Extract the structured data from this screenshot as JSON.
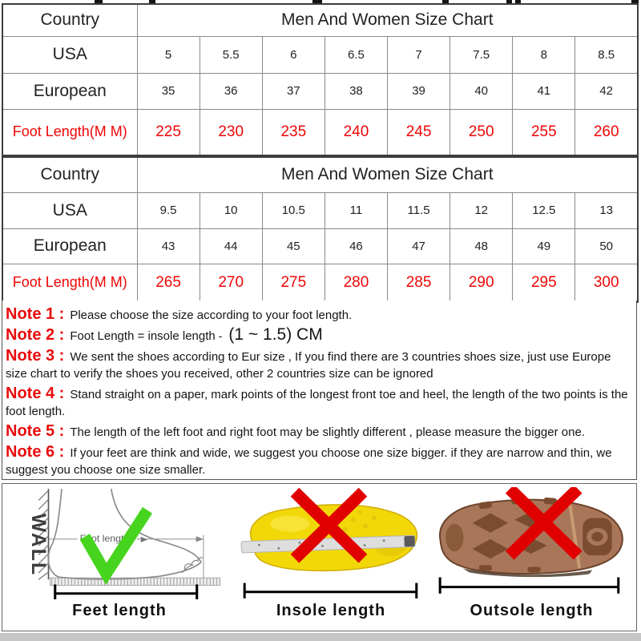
{
  "size_chart_tables": [
    {
      "header": {
        "country": "Country",
        "title": "Men And Women Size Chart"
      },
      "rows": [
        {
          "label": "USA",
          "highlight": false,
          "values": [
            "5",
            "5.5",
            "6",
            "6.5",
            "7",
            "7.5",
            "8",
            "8.5"
          ]
        },
        {
          "label": "European",
          "highlight": false,
          "values": [
            "35",
            "36",
            "37",
            "38",
            "39",
            "40",
            "41",
            "42"
          ]
        },
        {
          "label": "Foot Length(M M)",
          "highlight": true,
          "values": [
            "225",
            "230",
            "235",
            "240",
            "245",
            "250",
            "255",
            "260"
          ]
        }
      ]
    },
    {
      "header": {
        "country": "Country",
        "title": "Men And Women Size Chart"
      },
      "rows": [
        {
          "label": "USA",
          "highlight": false,
          "values": [
            "9.5",
            "10",
            "10.5",
            "11",
            "11.5",
            "12",
            "12.5",
            "13"
          ]
        },
        {
          "label": "European",
          "highlight": false,
          "values": [
            "43",
            "44",
            "45",
            "46",
            "47",
            "48",
            "49",
            "50"
          ]
        },
        {
          "label": "Foot Length(M M)",
          "highlight": true,
          "values": [
            "265",
            "270",
            "275",
            "280",
            "285",
            "290",
            "295",
            "300"
          ]
        }
      ]
    }
  ],
  "notes": [
    {
      "label": "Note 1 :",
      "text": "Please choose the size according to your foot length."
    },
    {
      "label": "Note 2 :",
      "text": "Foot Length = insole length",
      "sep": "-",
      "big": "(1 ~ 1.5) CM"
    },
    {
      "label": "Note 3 :",
      "text": "We sent the shoes according to Eur size , If you find there are 3 countries shoes size, just use Europe size chart to verify the shoes you received, other 2 countries size can be ignored"
    },
    {
      "label": "Note 4 :",
      "text": "Stand straight on a paper, mark points of the longest front toe and heel, the length of the two points is the foot length."
    },
    {
      "label": "Note 5 :",
      "text": "The length of the left foot and right foot may be slightly different , please measure the bigger one."
    },
    {
      "label": "Note 6 :",
      "text": "If your feet are think and wide, we suggest you choose one size bigger. if they are narrow and thin, we suggest you choose one size smaller."
    }
  ],
  "diagrams": [
    {
      "caption": "Feet length",
      "wall_label": "WALL",
      "annotation": "Foot length"
    },
    {
      "caption": "Insole length"
    },
    {
      "caption": "Outsole length"
    }
  ],
  "colors": {
    "highlight_red": "#ee0606",
    "note_label_red": "#e90c0c",
    "check_green": "#47d41e",
    "error_cross_red": "#e00000",
    "insole_yellow": "#f2d808",
    "outsole_brown": "#a9765a",
    "bottom_band_gray": "#c6c6c6"
  }
}
